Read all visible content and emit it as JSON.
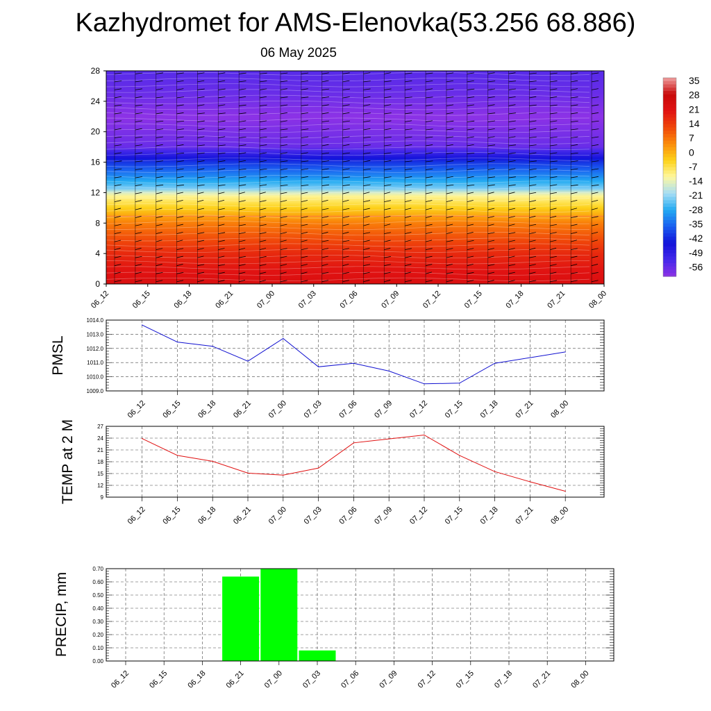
{
  "title": "Kazhydromet for AMS-Elenovka(53.256 68.886)",
  "subtitle": "06 May 2025",
  "chart_data": [
    {
      "type": "heatmap",
      "x_ticks": [
        "06_12",
        "06_15",
        "06_18",
        "06_21",
        "07_00",
        "07_03",
        "07_06",
        "07_09",
        "07_12",
        "07_15",
        "07_18",
        "07_21",
        "08_00"
      ],
      "y_ticks": [
        "0",
        "4",
        "8",
        "12",
        "16",
        "20",
        "24",
        "28"
      ],
      "ylim": [
        0,
        28
      ],
      "colorbar": {
        "labels": [
          "35",
          "28",
          "21",
          "14",
          "7",
          "0",
          "-7",
          "-14",
          "-21",
          "-28",
          "-35",
          "-42",
          "-49",
          "-56"
        ],
        "range": [
          -60,
          38
        ],
        "stops": [
          "#8c32e6",
          "#4428ea",
          "#1212d9",
          "#1a5ef0",
          "#22aaf2",
          "#a6ddf5",
          "#fff8a0",
          "#fdd21a",
          "#fb8c0a",
          "#f0460a",
          "#e01212",
          "#c80a0a",
          "#f0a0a0"
        ]
      },
      "temperature_profile": [
        [
          0,
          24
        ],
        [
          4,
          18
        ],
        [
          8,
          7
        ],
        [
          11.9,
          -12
        ],
        [
          12.2,
          -20
        ],
        [
          14,
          -30
        ],
        [
          16,
          -40
        ],
        [
          18,
          -56
        ],
        [
          20,
          -58
        ],
        [
          22,
          -60
        ],
        [
          25,
          -56
        ],
        [
          28,
          -54
        ]
      ],
      "colors": {
        "zero_line": "#ff6060"
      }
    },
    {
      "type": "line",
      "ylabel": "PMSL",
      "x": [
        "06_12",
        "06_15",
        "06_18",
        "06_21",
        "07_00",
        "07_03",
        "07_06",
        "07_09",
        "07_12",
        "07_15",
        "07_18",
        "07_21",
        "08_00"
      ],
      "values": [
        1013.65,
        1012.45,
        1012.15,
        1011.1,
        1012.7,
        1010.7,
        1010.95,
        1010.4,
        1009.5,
        1009.55,
        1010.95,
        1011.35,
        1011.75
      ],
      "ylim": [
        1009.0,
        1014.0
      ],
      "y_ticks": [
        "1009.0",
        "1010.0",
        "1011.0",
        "1012.0",
        "1013.0",
        "1014.0"
      ],
      "color": "#1010d0",
      "grid": true
    },
    {
      "type": "line",
      "ylabel": "TEMP at 2 M",
      "x": [
        "06_12",
        "06_15",
        "06_18",
        "06_21",
        "07_00",
        "07_03",
        "07_06",
        "07_09",
        "07_12",
        "07_15",
        "07_18",
        "07_21",
        "08_00"
      ],
      "values": [
        23.9,
        19.6,
        18.1,
        15.1,
        14.6,
        16.4,
        22.8,
        23.8,
        24.8,
        19.6,
        15.5,
        12.9,
        10.5
      ],
      "ylim": [
        9,
        27
      ],
      "y_ticks": [
        "9",
        "12",
        "15",
        "18",
        "21",
        "24",
        "27"
      ],
      "color": "#e01010",
      "grid": true
    },
    {
      "type": "bar",
      "ylabel": "PRECIP, mm",
      "categories": [
        "06_12",
        "06_15",
        "06_18",
        "06_21",
        "07_00",
        "07_03",
        "07_06",
        "07_09",
        "07_12",
        "07_15",
        "07_18",
        "07_21",
        "08_00"
      ],
      "values": [
        0,
        0,
        0,
        0.64,
        0.7,
        0.08,
        0,
        0,
        0,
        0,
        0,
        0,
        0
      ],
      "ylim": [
        0,
        0.7
      ],
      "y_ticks": [
        "0.00",
        "0.10",
        "0.20",
        "0.30",
        "0.40",
        "0.50",
        "0.60",
        "0.70"
      ],
      "color": "#00ff00",
      "grid": true
    }
  ]
}
